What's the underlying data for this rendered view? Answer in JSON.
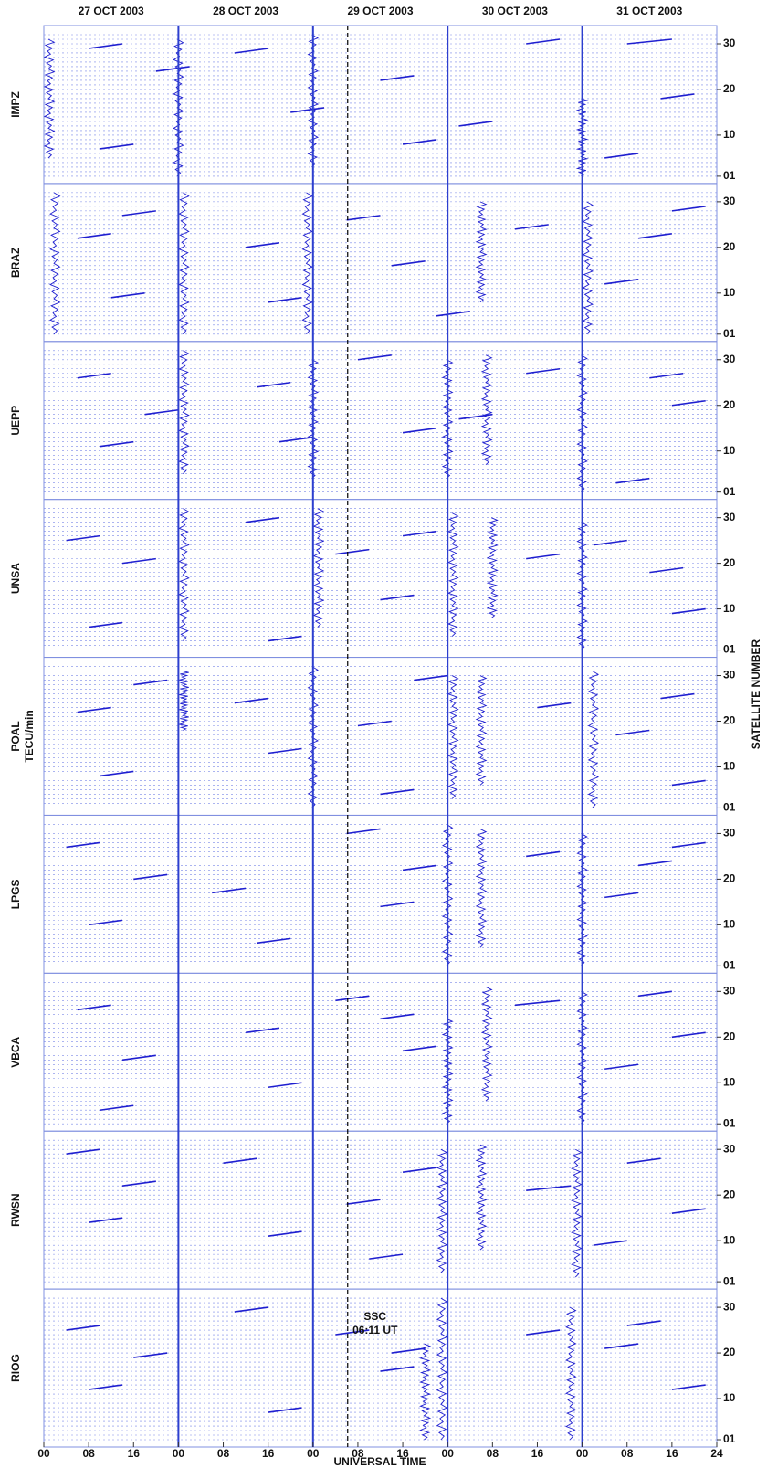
{
  "chart_data": {
    "type": "multi-panel-trace",
    "x_label": "UNIVERSAL TIME",
    "y_label_right": "SATELLITE NUMBER",
    "color": "#1f1fd0",
    "xlim": [
      0,
      120
    ],
    "ylim": [
      0,
      33
    ],
    "days": [
      "27 OCT 2003",
      "28 OCT 2003",
      "29 OCT 2003",
      "30 OCT 2003",
      "31 OCT 2003"
    ],
    "xticks": [
      {
        "value": 0,
        "label": "00"
      },
      {
        "value": 8,
        "label": "08"
      },
      16,
      {
        "value": 24,
        "label": "00"
      },
      {
        "value": 32,
        "label": "08"
      },
      {
        "value": 40,
        "label": "16"
      },
      {
        "value": 48,
        "label": "00"
      },
      {
        "value": 56,
        "label": "08"
      },
      {
        "value": 64,
        "label": "16"
      },
      {
        "value": 72,
        "label": "00"
      },
      {
        "value": 80,
        "label": "08"
      },
      {
        "value": 88,
        "label": "16"
      },
      {
        "value": 96,
        "label": "00"
      },
      {
        "value": 104,
        "label": "08"
      },
      {
        "value": 112,
        "label": "16"
      },
      {
        "value": 120,
        "label": "24"
      }
    ],
    "yticks": [
      {
        "value": 1,
        "label": "01"
      },
      10,
      20,
      30
    ],
    "satellite_grid": [
      1,
      2,
      3,
      4,
      5,
      6,
      7,
      8,
      9,
      10,
      11,
      12,
      13,
      14,
      15,
      16,
      17,
      18,
      19,
      20,
      21,
      22,
      23,
      24,
      25,
      26,
      27,
      28,
      29,
      30,
      31,
      32
    ],
    "day_lines": [
      24,
      48,
      72,
      96
    ],
    "ssc": {
      "x": 54.18,
      "label": "SSC",
      "time": "06:11 UT"
    },
    "panels": [
      {
        "name": "IMPZ",
        "segments": [
          [
            8,
            29,
            14,
            30
          ],
          [
            20,
            24,
            26,
            25
          ],
          [
            34,
            28,
            40,
            29
          ],
          [
            60,
            22,
            66,
            23
          ],
          [
            86,
            30,
            92,
            31
          ],
          [
            104,
            30,
            112,
            31
          ],
          [
            10,
            7,
            16,
            8
          ],
          [
            44,
            15,
            50,
            16
          ],
          [
            74,
            12,
            80,
            13
          ],
          [
            100,
            5,
            106,
            6
          ],
          [
            110,
            18,
            116,
            19
          ],
          [
            64,
            8,
            70,
            9
          ]
        ],
        "disturbances": [
          [
            1,
            5,
            31
          ],
          [
            24,
            1,
            31
          ],
          [
            48,
            3,
            32
          ],
          [
            96,
            1,
            18
          ]
        ]
      },
      {
        "name": "BRAZ",
        "segments": [
          [
            6,
            22,
            12,
            23
          ],
          [
            14,
            27,
            20,
            28
          ],
          [
            36,
            20,
            42,
            21
          ],
          [
            54,
            26,
            60,
            27
          ],
          [
            62,
            16,
            68,
            17
          ],
          [
            84,
            24,
            90,
            25
          ],
          [
            106,
            22,
            112,
            23
          ],
          [
            12,
            9,
            18,
            10
          ],
          [
            40,
            8,
            46,
            9
          ],
          [
            70,
            5,
            76,
            6
          ],
          [
            100,
            12,
            106,
            13
          ],
          [
            112,
            28,
            118,
            29
          ]
        ],
        "disturbances": [
          [
            2,
            1,
            32
          ],
          [
            25,
            1,
            32
          ],
          [
            47,
            1,
            32
          ],
          [
            78,
            8,
            30
          ],
          [
            97,
            1,
            30
          ]
        ]
      },
      {
        "name": "UEPP",
        "segments": [
          [
            6,
            26,
            12,
            27
          ],
          [
            18,
            18,
            24,
            19
          ],
          [
            38,
            24,
            44,
            25
          ],
          [
            56,
            30,
            62,
            31
          ],
          [
            64,
            14,
            70,
            15
          ],
          [
            86,
            27,
            92,
            28
          ],
          [
            108,
            26,
            114,
            27
          ],
          [
            10,
            11,
            16,
            12
          ],
          [
            42,
            12,
            48,
            13
          ],
          [
            74,
            17,
            80,
            18
          ],
          [
            102,
            3,
            108,
            4
          ],
          [
            112,
            20,
            118,
            21
          ]
        ],
        "disturbances": [
          [
            25,
            5,
            32
          ],
          [
            48,
            4,
            30
          ],
          [
            72,
            4,
            30
          ],
          [
            79,
            7,
            31
          ],
          [
            96,
            1,
            31
          ]
        ]
      },
      {
        "name": "UNSA",
        "segments": [
          [
            4,
            25,
            10,
            26
          ],
          [
            14,
            20,
            20,
            21
          ],
          [
            36,
            29,
            42,
            30
          ],
          [
            52,
            22,
            58,
            23
          ],
          [
            64,
            26,
            70,
            27
          ],
          [
            86,
            21,
            92,
            22
          ],
          [
            108,
            18,
            114,
            19
          ],
          [
            8,
            6,
            14,
            7
          ],
          [
            40,
            3,
            46,
            4
          ],
          [
            60,
            12,
            66,
            13
          ],
          [
            98,
            24,
            104,
            25
          ],
          [
            112,
            9,
            118,
            10
          ]
        ],
        "disturbances": [
          [
            25,
            3,
            32
          ],
          [
            49,
            6,
            32
          ],
          [
            73,
            4,
            31
          ],
          [
            80,
            8,
            30
          ],
          [
            96,
            1,
            29
          ]
        ]
      },
      {
        "name": "POAL",
        "unit": "TECU/min",
        "segments": [
          [
            6,
            22,
            12,
            23
          ],
          [
            16,
            28,
            22,
            29
          ],
          [
            34,
            24,
            40,
            25
          ],
          [
            56,
            19,
            62,
            20
          ],
          [
            66,
            29,
            72,
            30
          ],
          [
            88,
            23,
            94,
            24
          ],
          [
            110,
            25,
            116,
            26
          ],
          [
            10,
            8,
            16,
            9
          ],
          [
            40,
            13,
            46,
            14
          ],
          [
            60,
            4,
            66,
            5
          ],
          [
            102,
            17,
            108,
            18
          ],
          [
            112,
            6,
            118,
            7
          ]
        ],
        "disturbances": [
          [
            25,
            18,
            31
          ],
          [
            48,
            1,
            32
          ],
          [
            73,
            3,
            30
          ],
          [
            78,
            6,
            30
          ],
          [
            98,
            1,
            31
          ]
        ]
      },
      {
        "name": "LPGS",
        "segments": [
          [
            4,
            27,
            10,
            28
          ],
          [
            16,
            20,
            22,
            21
          ],
          [
            30,
            17,
            36,
            18
          ],
          [
            54,
            30,
            60,
            31
          ],
          [
            64,
            22,
            70,
            23
          ],
          [
            86,
            25,
            92,
            26
          ],
          [
            106,
            23,
            112,
            24
          ],
          [
            8,
            10,
            14,
            11
          ],
          [
            38,
            6,
            44,
            7
          ],
          [
            60,
            14,
            66,
            15
          ],
          [
            100,
            16,
            106,
            17
          ],
          [
            112,
            27,
            118,
            28
          ]
        ],
        "disturbances": [
          [
            72,
            1,
            32
          ],
          [
            78,
            5,
            31
          ],
          [
            96,
            1,
            30
          ]
        ]
      },
      {
        "name": "VBCA",
        "segments": [
          [
            6,
            26,
            12,
            27
          ],
          [
            14,
            15,
            20,
            16
          ],
          [
            36,
            21,
            42,
            22
          ],
          [
            52,
            28,
            58,
            29
          ],
          [
            64,
            17,
            70,
            18
          ],
          [
            84,
            27,
            92,
            28
          ],
          [
            106,
            29,
            112,
            30
          ],
          [
            10,
            4,
            16,
            5
          ],
          [
            40,
            9,
            46,
            10
          ],
          [
            60,
            24,
            66,
            25
          ],
          [
            100,
            13,
            106,
            14
          ],
          [
            112,
            20,
            118,
            21
          ]
        ],
        "disturbances": [
          [
            72,
            1,
            24
          ],
          [
            79,
            6,
            31
          ],
          [
            96,
            1,
            30
          ]
        ]
      },
      {
        "name": "RWSN",
        "segments": [
          [
            4,
            29,
            10,
            30
          ],
          [
            14,
            22,
            20,
            23
          ],
          [
            32,
            27,
            38,
            28
          ],
          [
            54,
            18,
            60,
            19
          ],
          [
            64,
            25,
            70,
            26
          ],
          [
            86,
            21,
            94,
            22
          ],
          [
            104,
            27,
            110,
            28
          ],
          [
            8,
            14,
            14,
            15
          ],
          [
            40,
            11,
            46,
            12
          ],
          [
            58,
            6,
            64,
            7
          ],
          [
            98,
            9,
            104,
            10
          ],
          [
            112,
            16,
            118,
            17
          ]
        ],
        "disturbances": [
          [
            71,
            3,
            30
          ],
          [
            78,
            8,
            31
          ],
          [
            95,
            2,
            30
          ]
        ]
      },
      {
        "name": "RIOG",
        "segments": [
          [
            4,
            25,
            10,
            26
          ],
          [
            16,
            19,
            22,
            20
          ],
          [
            34,
            29,
            40,
            30
          ],
          [
            52,
            24,
            58,
            25
          ],
          [
            62,
            20,
            68,
            21
          ],
          [
            86,
            24,
            92,
            25
          ],
          [
            104,
            26,
            110,
            27
          ],
          [
            8,
            12,
            14,
            13
          ],
          [
            40,
            7,
            46,
            8
          ],
          [
            60,
            16,
            66,
            17
          ],
          [
            100,
            21,
            106,
            22
          ],
          [
            112,
            12,
            118,
            13
          ]
        ],
        "disturbances": [
          [
            68,
            1,
            22
          ],
          [
            71,
            1,
            32
          ],
          [
            94,
            1,
            30
          ]
        ]
      }
    ]
  }
}
